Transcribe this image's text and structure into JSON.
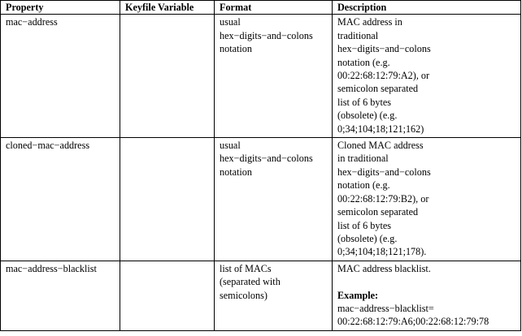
{
  "table": {
    "headers": [
      "Property",
      "Keyfile Variable",
      "Format",
      "Description"
    ],
    "rows": [
      {
        "property": "mac−address",
        "keyfile_variable": "",
        "format": "usual\nhex−digits−and−colons\nnotation",
        "description": "MAC address in\ntraditional\nhex−digits−and−colons\nnotation (e.g.\n00:22:68:12:79:A2), or\nsemicolon separated\nlist of 6 bytes\n(obsolete) (e.g.\n0;34;104;18;121;162)"
      },
      {
        "property": "cloned−mac−address",
        "keyfile_variable": "",
        "format": "usual\nhex−digits−and−colons\nnotation",
        "description": "Cloned MAC address\nin traditional\nhex−digits−and−colons\nnotation (e.g.\n00:22:68:12:79:B2), or\nsemicolon separated\nlist of 6 bytes\n(obsolete) (e.g.\n0;34;104;18;121;178)."
      },
      {
        "property": "mac−address−blacklist",
        "keyfile_variable": "",
        "format": "list of MACs\n(separated with\nsemicolons)",
        "description": "MAC address blacklist.",
        "example_label": "Example:",
        "example_value": "mac−address−blacklist=\n00:22:68:12:79:A6;00:22:68:12:79:78"
      }
    ]
  }
}
